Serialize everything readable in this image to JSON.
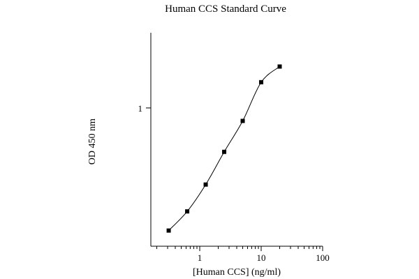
{
  "chart_data": {
    "type": "line",
    "title": "Human CCS Standard Curve",
    "xlabel": "[Human CCS] (ng/ml)",
    "ylabel": "OD 450 nm",
    "x_scale": "log",
    "y_scale": "log",
    "xlim": [
      0.16,
      100
    ],
    "ylim": [
      0.2,
      2.4
    ],
    "x_major_ticks": [
      1,
      10,
      100
    ],
    "x_tick_labels": [
      "1",
      "10",
      "100"
    ],
    "y_major_ticks": [
      1
    ],
    "y_tick_labels": [
      "1"
    ],
    "grid": false,
    "legend": "none",
    "series": [
      {
        "marker": "square",
        "color": "#000000",
        "x": [
          0.3125,
          0.625,
          1.25,
          2.5,
          5,
          10,
          20
        ],
        "y": [
          0.24,
          0.3,
          0.41,
          0.6,
          0.86,
          1.35,
          1.62
        ]
      }
    ]
  }
}
